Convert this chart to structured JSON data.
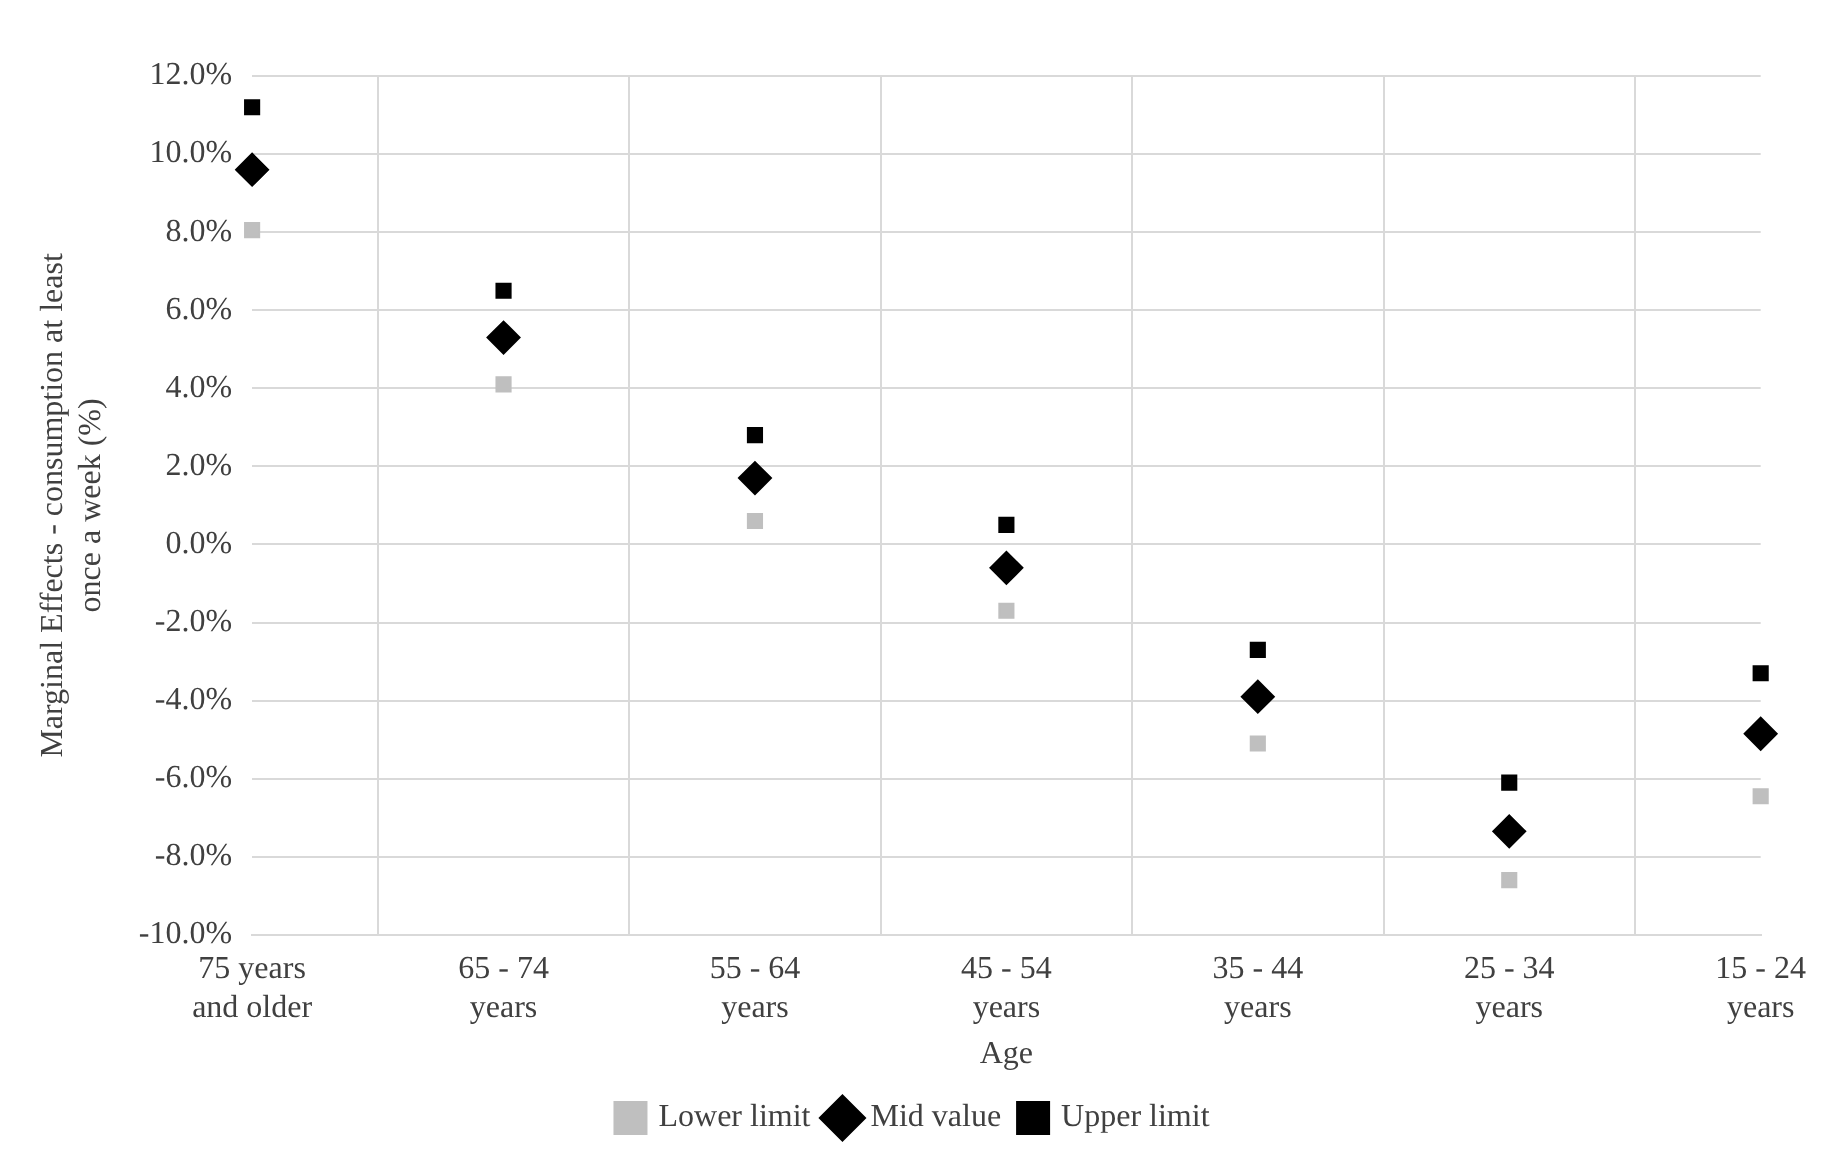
{
  "chart_data": {
    "type": "scatter",
    "xlabel": "Age",
    "ylabel": "Marginal Effects - consumption at least once a week (%)",
    "categories": [
      "75 years and older",
      "65 - 74 years",
      "55 - 64 years",
      "45 - 54 years",
      "35 - 44 years",
      "25 - 34 years",
      "15 - 24 years"
    ],
    "series": [
      {
        "name": "Lower limit",
        "color": "#bfbfbf",
        "marker": "square",
        "values": [
          8.05,
          4.1,
          0.6,
          -1.7,
          -5.1,
          -8.6,
          -6.45
        ]
      },
      {
        "name": "Mid value",
        "color": "#000000",
        "marker": "diamond",
        "values": [
          9.6,
          5.3,
          1.7,
          -0.6,
          -3.9,
          -7.35,
          -4.85
        ]
      },
      {
        "name": "Upper limit",
        "color": "#000000",
        "marker": "square",
        "values": [
          11.2,
          6.5,
          2.8,
          0.5,
          -2.7,
          -6.1,
          -3.3
        ]
      }
    ],
    "ylim": [
      -10,
      12
    ],
    "yticks": [
      {
        "value": -10,
        "label": "-10.0%"
      },
      {
        "value": -8,
        "label": "-8.0%"
      },
      {
        "value": -6,
        "label": "-6.0%"
      },
      {
        "value": -4,
        "label": "-4.0%"
      },
      {
        "value": -2,
        "label": "-2.0%"
      },
      {
        "value": 0,
        "label": "0.0%"
      },
      {
        "value": 2,
        "label": "2.0%"
      },
      {
        "value": 4,
        "label": "4.0%"
      },
      {
        "value": 6,
        "label": "6.0%"
      },
      {
        "value": 8,
        "label": "8.0%"
      },
      {
        "value": 10,
        "label": "10.0%"
      },
      {
        "value": 12,
        "label": "12.0%"
      }
    ],
    "grid": true,
    "legend": "bottom"
  }
}
